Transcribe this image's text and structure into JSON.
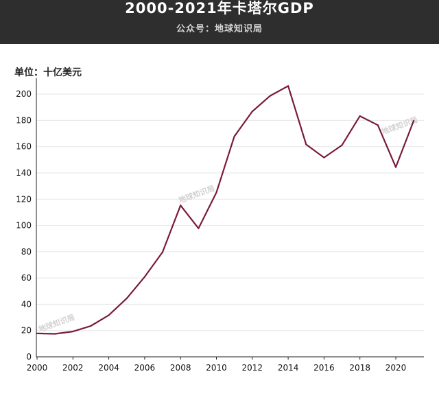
{
  "header": {
    "title": "2000-2021年卡塔尔GDP",
    "subtitle": "公众号：地球知识局"
  },
  "watermark": "地球知识局",
  "colors": {
    "header_bg": "#2e2e2e",
    "line": "#7a1a3a",
    "grid": "#e6e6e6"
  },
  "chart_data": {
    "type": "line",
    "title": "2000-2021年卡塔尔GDP",
    "ylabel": "单位：十亿美元",
    "xlim": [
      2000,
      2021.5
    ],
    "ylim": [
      0,
      210
    ],
    "yticks": [
      0,
      20,
      40,
      60,
      80,
      100,
      120,
      140,
      160,
      180,
      200
    ],
    "xticks": [
      2000,
      2002,
      2004,
      2006,
      2008,
      2010,
      2012,
      2014,
      2016,
      2018,
      2020
    ],
    "grid": true,
    "series": [
      {
        "x": [
          2000,
          2001,
          2002,
          2003,
          2004,
          2005,
          2006,
          2007,
          2008,
          2009,
          2010,
          2011,
          2012,
          2013,
          2014,
          2015,
          2016,
          2017,
          2018,
          2019,
          2020,
          2021
        ],
        "values": [
          17.8,
          17.5,
          19.3,
          23.5,
          31.7,
          44.5,
          60.9,
          79.7,
          115.3,
          97.8,
          125.1,
          167.8,
          186.8,
          198.7,
          206.2,
          161.7,
          151.7,
          161.1,
          183.3,
          176.4,
          144.4,
          179.7
        ]
      }
    ]
  }
}
